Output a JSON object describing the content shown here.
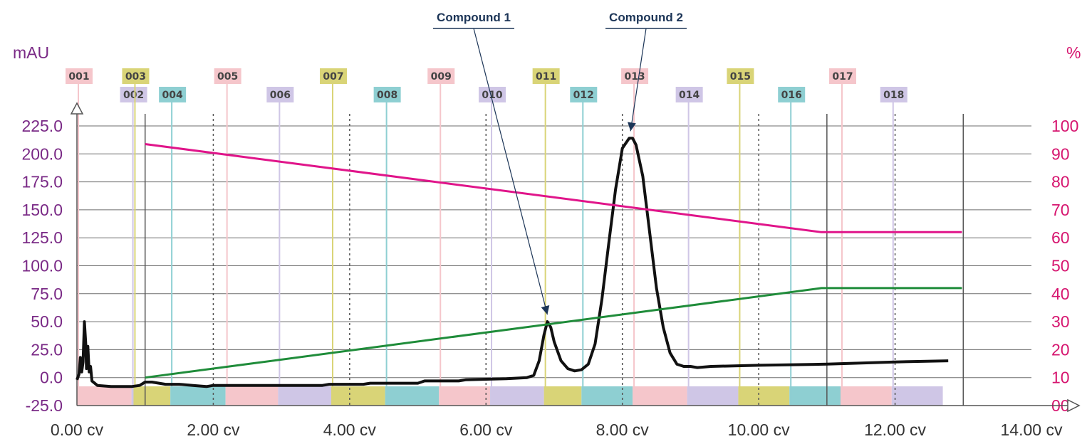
{
  "chart_data": {
    "type": "line",
    "y_left_label": "mAU",
    "y_right_label": "%",
    "x_ticks": [
      "0.00 cv",
      "2.00 cv",
      "4.00 cv",
      "6.00 cv",
      "8.00 cv",
      "10.00 cv",
      "12.00 cv",
      "14.00 cv"
    ],
    "y_left_ticks": [
      "-25.0",
      "0.0",
      "25.0",
      "50.0",
      "75.0",
      "100.0",
      "125.0",
      "150.0",
      "175.0",
      "200.0",
      "225.0"
    ],
    "y_right_ticks": [
      "00",
      "10",
      "20",
      "30",
      "40",
      "50",
      "60",
      "70",
      "80",
      "90",
      "100"
    ],
    "xlim": [
      0,
      14
    ],
    "ylim_left": [
      -25,
      225
    ],
    "ylim_right": [
      0,
      100
    ],
    "grid": "horizontal",
    "vertical_solid_lines_x": [
      1.0,
      11.0,
      13.0
    ],
    "vertical_dotted_lines_x": [
      2.0,
      4.0,
      6.0,
      8.0,
      10.0,
      12.0
    ],
    "series": [
      {
        "axis": "left",
        "color": "#111111",
        "points": [
          [
            0.0,
            -2
          ],
          [
            0.03,
            3
          ],
          [
            0.05,
            18
          ],
          [
            0.07,
            5
          ],
          [
            0.09,
            14
          ],
          [
            0.11,
            50
          ],
          [
            0.13,
            30
          ],
          [
            0.14,
            8
          ],
          [
            0.16,
            28
          ],
          [
            0.18,
            5
          ],
          [
            0.2,
            10
          ],
          [
            0.22,
            -3
          ],
          [
            0.3,
            -7
          ],
          [
            0.5,
            -8
          ],
          [
            0.8,
            -8
          ],
          [
            0.92,
            -7
          ],
          [
            1.0,
            -4
          ],
          [
            1.1,
            -4
          ],
          [
            1.3,
            -6
          ],
          [
            1.5,
            -6
          ],
          [
            1.7,
            -7
          ],
          [
            1.9,
            -8
          ],
          [
            2.0,
            -7
          ],
          [
            2.5,
            -7
          ],
          [
            3.0,
            -7
          ],
          [
            3.6,
            -7
          ],
          [
            3.7,
            -6
          ],
          [
            4.2,
            -6
          ],
          [
            4.3,
            -5
          ],
          [
            5.0,
            -5
          ],
          [
            5.1,
            -3
          ],
          [
            5.6,
            -3
          ],
          [
            5.7,
            -2
          ],
          [
            6.3,
            -1
          ],
          [
            6.6,
            0
          ],
          [
            6.7,
            2
          ],
          [
            6.78,
            15
          ],
          [
            6.85,
            38
          ],
          [
            6.9,
            50
          ],
          [
            6.95,
            45
          ],
          [
            7.0,
            32
          ],
          [
            7.1,
            15
          ],
          [
            7.2,
            8
          ],
          [
            7.3,
            6
          ],
          [
            7.4,
            7
          ],
          [
            7.5,
            12
          ],
          [
            7.6,
            30
          ],
          [
            7.7,
            70
          ],
          [
            7.8,
            120
          ],
          [
            7.9,
            168
          ],
          [
            8.0,
            205
          ],
          [
            8.1,
            214
          ],
          [
            8.15,
            214
          ],
          [
            8.2,
            208
          ],
          [
            8.3,
            180
          ],
          [
            8.4,
            130
          ],
          [
            8.5,
            80
          ],
          [
            8.6,
            45
          ],
          [
            8.7,
            22
          ],
          [
            8.8,
            12
          ],
          [
            8.9,
            10
          ],
          [
            9.0,
            10
          ],
          [
            9.1,
            9
          ],
          [
            9.3,
            10
          ],
          [
            10.0,
            11
          ],
          [
            11.0,
            12
          ],
          [
            12.0,
            14
          ],
          [
            12.78,
            15
          ]
        ]
      },
      {
        "axis": "right",
        "color": "#e0158a",
        "points": [
          [
            1.0,
            93.5
          ],
          [
            10.92,
            62
          ],
          [
            12.98,
            62
          ]
        ]
      },
      {
        "axis": "right",
        "color": "#1f8c3a",
        "points": [
          [
            1.0,
            10
          ],
          [
            10.92,
            42
          ],
          [
            12.98,
            42
          ]
        ]
      }
    ],
    "fractions": [
      {
        "label": "001",
        "start": 0.0,
        "end": 0.8,
        "color": "#f5c6cb"
      },
      {
        "label": "002",
        "start": 0.8,
        "end": 0.83,
        "color": "#cfc6e6"
      },
      {
        "label": "003",
        "start": 0.83,
        "end": 1.37,
        "color": "#d9d477"
      },
      {
        "label": "004",
        "start": 1.37,
        "end": 2.18,
        "color": "#8ecfd2"
      },
      {
        "label": "005",
        "start": 2.18,
        "end": 2.95,
        "color": "#f5c6cb"
      },
      {
        "label": "006",
        "start": 2.95,
        "end": 3.73,
        "color": "#cfc6e6"
      },
      {
        "label": "007",
        "start": 3.73,
        "end": 4.52,
        "color": "#d9d477"
      },
      {
        "label": "008",
        "start": 4.52,
        "end": 5.31,
        "color": "#8ecfd2"
      },
      {
        "label": "009",
        "start": 5.31,
        "end": 6.06,
        "color": "#f5c6cb"
      },
      {
        "label": "010",
        "start": 6.06,
        "end": 6.85,
        "color": "#cfc6e6"
      },
      {
        "label": "011",
        "start": 6.85,
        "end": 7.4,
        "color": "#d9d477"
      },
      {
        "label": "012",
        "start": 7.4,
        "end": 8.15,
        "color": "#8ecfd2"
      },
      {
        "label": "013",
        "start": 8.15,
        "end": 8.95,
        "color": "#f5c6cb"
      },
      {
        "label": "014",
        "start": 8.95,
        "end": 9.7,
        "color": "#cfc6e6"
      },
      {
        "label": "015",
        "start": 9.7,
        "end": 10.45,
        "color": "#d9d477"
      },
      {
        "label": "016",
        "start": 10.45,
        "end": 11.2,
        "color": "#8ecfd2"
      },
      {
        "label": "017",
        "start": 11.2,
        "end": 11.95,
        "color": "#f5c6cb"
      },
      {
        "label": "018",
        "start": 11.95,
        "end": 12.7,
        "color": "#cfc6e6"
      }
    ],
    "annotations": [
      {
        "text": "Compound 1",
        "x": 6.9,
        "y": 50
      },
      {
        "text": "Compound 2",
        "x": 8.12,
        "y": 214
      }
    ]
  }
}
